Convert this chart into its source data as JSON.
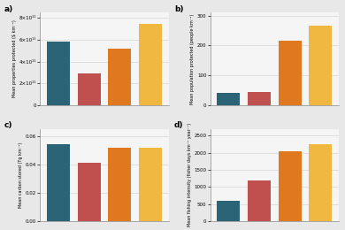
{
  "colors": {
    "teal": "#2a6476",
    "red": "#c0504d",
    "orange": "#e07820",
    "yellow": "#f0b840"
  },
  "subplot_a": {
    "label": "a)",
    "ylabel": "Mean properties protected ($ km⁻²)",
    "values": [
      580000000000.0,
      290000000000.0,
      520000000000.0,
      750000000000.0
    ],
    "colors": [
      "teal",
      "red",
      "orange",
      "yellow"
    ],
    "ylim": [
      0,
      850000000000.0
    ],
    "yticks": [
      0,
      200000000000.0,
      400000000000.0,
      600000000000.0,
      800000000000.0
    ],
    "ytick_labels": [
      "0",
      "2×10¹¹",
      "4×10¹¹",
      "6×10¹¹",
      "8×10¹¹"
    ]
  },
  "subplot_b": {
    "label": "b)",
    "ylabel": "Mean population protected (people km⁻²)",
    "values": [
      40,
      45,
      215,
      265
    ],
    "colors": [
      "teal",
      "red",
      "orange",
      "yellow"
    ],
    "ylim": [
      0,
      310
    ],
    "yticks": [
      0,
      100,
      200,
      300
    ],
    "ytick_labels": [
      "0",
      "100",
      "200",
      "300"
    ]
  },
  "subplot_c": {
    "label": "c)",
    "ylabel": "Mean carbon stored (Tg km⁻²)",
    "values": [
      0.054,
      0.041,
      0.052,
      0.052
    ],
    "colors": [
      "teal",
      "red",
      "orange",
      "yellow"
    ],
    "ylim": [
      0,
      0.065
    ],
    "yticks": [
      0.0,
      0.02,
      0.04,
      0.06
    ],
    "ytick_labels": [
      "0.00",
      "0.02",
      "0.04",
      "0.06"
    ]
  },
  "subplot_d": {
    "label": "d)",
    "ylabel": "Mean fishing intensity (fisher days km⁻² year⁻¹)",
    "values": [
      600,
      1200,
      2050,
      2250
    ],
    "colors": [
      "teal",
      "red",
      "orange",
      "yellow"
    ],
    "ylim": [
      0,
      2700
    ],
    "yticks": [
      0,
      500,
      1000,
      1500,
      2000,
      2500
    ],
    "ytick_labels": [
      "0",
      "500",
      "1000",
      "1500",
      "2000",
      "2500"
    ]
  },
  "background_color": "#e8e8e8",
  "panel_bg": "#f5f5f5",
  "bar_width": 0.75,
  "x_positions": [
    0,
    1,
    2,
    3
  ]
}
